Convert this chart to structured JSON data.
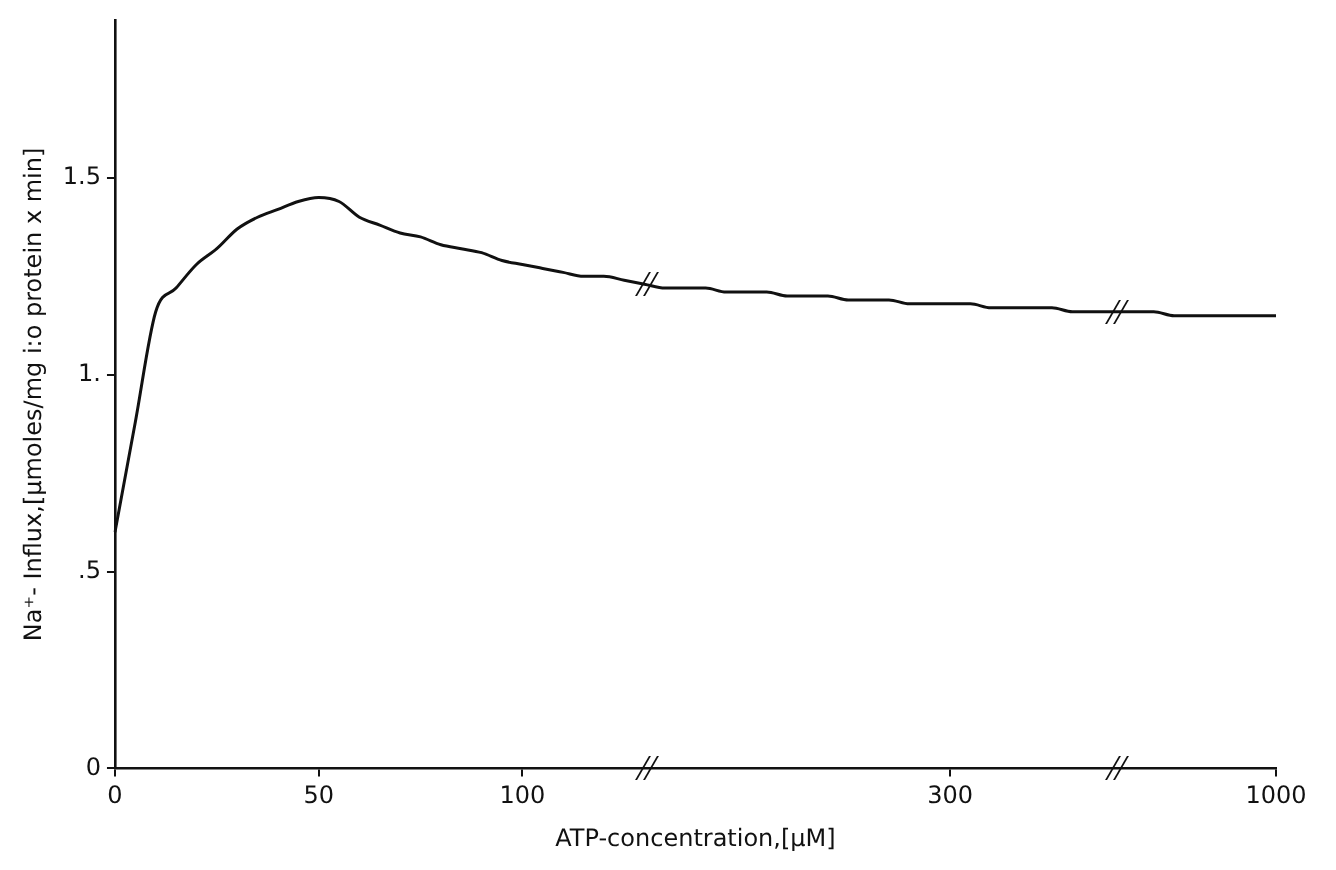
{
  "chart_data": {
    "type": "line",
    "xlabel": "ATP-concentration,[µM]",
    "ylabel": "Na⁺- Influx,[µmoles/mg i:o protein x min]",
    "categories": [
      "0",
      null,
      null,
      null,
      null,
      null,
      null,
      null,
      null,
      null,
      "50",
      null,
      null,
      null,
      null,
      null,
      null,
      null,
      null,
      null,
      "100",
      null,
      null,
      null,
      null,
      null,
      null,
      null,
      null,
      null,
      null,
      null,
      null,
      null,
      null,
      null,
      null,
      null,
      null,
      null,
      null,
      "300",
      null,
      null,
      null,
      null,
      null,
      null,
      null,
      null,
      null,
      null,
      null,
      null,
      null,
      null,
      null,
      "1000"
    ],
    "series": [
      {
        "color": "#111111",
        "values": [
          0.6,
          0.88,
          1.16,
          1.22,
          1.28,
          1.32,
          1.37,
          1.4,
          1.42,
          1.44,
          1.45,
          1.44,
          1.4,
          1.38,
          1.36,
          1.35,
          1.33,
          1.32,
          1.31,
          1.29,
          1.28,
          1.27,
          1.26,
          1.25,
          1.25,
          1.24,
          1.23,
          1.22,
          1.22,
          1.22,
          1.21,
          1.21,
          1.21,
          1.2,
          1.2,
          1.2,
          1.19,
          1.19,
          1.19,
          1.18,
          1.18,
          1.18,
          1.18,
          1.17,
          1.17,
          1.17,
          1.17,
          1.16,
          1.16,
          1.16,
          1.16,
          1.16,
          1.15,
          1.15,
          1.15,
          1.15,
          1.15,
          1.15
        ]
      }
    ],
    "ylim": [
      0,
      1.9
    ],
    "yticks": [
      0,
      {
        "value": 0.5,
        "label": ".5"
      },
      {
        "value": 1,
        "label": "1."
      },
      1.5
    ],
    "grid": false,
    "legend": false,
    "marker": "none",
    "line_style": "solid"
  }
}
